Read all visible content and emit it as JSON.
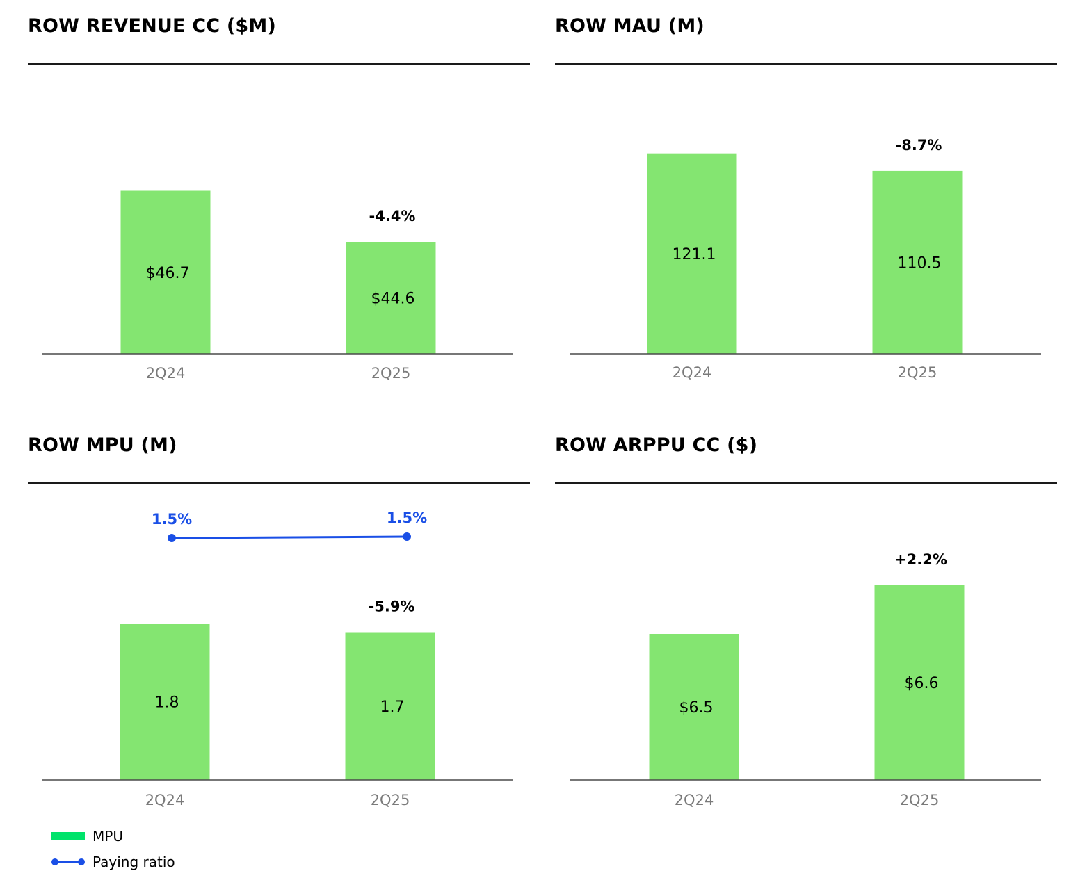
{
  "colors": {
    "bar": "#84e571",
    "line": "#1a4fe6",
    "axis": "#4a4a4a",
    "tick": "#7a7a7a",
    "legend_bar": "#00e36b"
  },
  "chart_data": [
    {
      "type": "bar",
      "title": "ROW REVENUE CC ($M)",
      "categories": [
        "2Q24",
        "2Q25"
      ],
      "values": [
        46.7,
        44.6
      ],
      "value_labels": [
        "$46.7",
        "$44.6"
      ],
      "change_label": "-4.4%",
      "ylim": [
        40,
        50
      ],
      "grid": false
    },
    {
      "type": "bar",
      "title": "ROW MAU (M)",
      "categories": [
        "2Q24",
        "2Q25"
      ],
      "values": [
        121.1,
        110.5
      ],
      "value_labels": [
        "121.1",
        "110.5"
      ],
      "change_label": "-8.7%",
      "ylim": [
        0,
        147
      ],
      "grid": false
    },
    {
      "type": "bar",
      "title": "ROW MPU (M)",
      "categories": [
        "2Q24",
        "2Q25"
      ],
      "values": [
        1.8,
        1.7
      ],
      "value_labels": [
        "1.8",
        "1.7"
      ],
      "change_label": "-5.9%",
      "ylim": [
        0,
        2.8
      ],
      "grid": false,
      "line_series": {
        "values": [
          1.5,
          1.5
        ],
        "labels": [
          "1.5%",
          "1.5%"
        ]
      },
      "legend": {
        "position": "bottom-left",
        "items": [
          {
            "label": "MPU",
            "kind": "bar"
          },
          {
            "label": "Paying ratio",
            "kind": "line"
          }
        ]
      }
    },
    {
      "type": "bar",
      "title": "ROW ARPPU CC ($)",
      "categories": [
        "2Q24",
        "2Q25"
      ],
      "values": [
        6.5,
        6.6
      ],
      "value_labels": [
        "$6.5",
        "$6.6"
      ],
      "change_label": "+2.2%",
      "ylim": [
        6.2,
        6.7
      ],
      "grid": false
    }
  ]
}
